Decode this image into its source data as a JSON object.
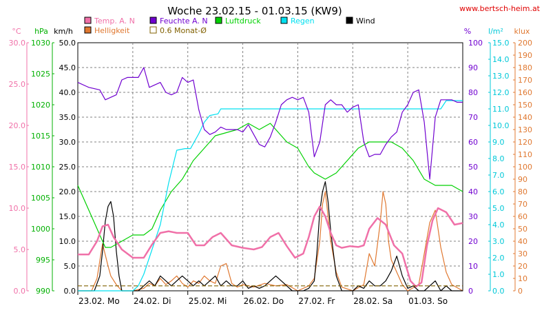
{
  "chart_data": {
    "type": "line",
    "title": "Woche 23.02.15 - 01.03.15 (KW9)",
    "source": "www.bertsch-heim.at",
    "legend": [
      {
        "name": "Temp. A. N",
        "color": "#f070a8",
        "swatch": "box"
      },
      {
        "name": "Feuchte A. N",
        "color": "#7000d0",
        "swatch": "box"
      },
      {
        "name": "Luftdruck",
        "color": "#00d000",
        "swatch": "box"
      },
      {
        "name": "Regen",
        "color": "#00e0f0",
        "swatch": "box"
      },
      {
        "name": "Wind",
        "color": "#000000",
        "swatch": "box"
      },
      {
        "name": "Helligkeit",
        "color": "#e07830",
        "swatch": "box"
      },
      {
        "name": "0.6 Monat-Ø",
        "color": "#806000",
        "swatch": "outline"
      }
    ],
    "x_axis": {
      "range_days": [
        0,
        7
      ],
      "ticks": [
        "23.02. Mo",
        "24.02. Di",
        "25.02. Mi",
        "26.02. Do",
        "27.02. Fr",
        "28.02. Sa",
        "01.03. So"
      ]
    },
    "axes": {
      "temp": {
        "unit": "°C",
        "color": "#f070a8",
        "range": [
          0,
          30
        ],
        "ticks": [
          "0.0",
          "5.0",
          "10.0",
          "15.0",
          "20.0",
          "25.0",
          "30.0"
        ]
      },
      "pressure": {
        "unit": "hPa",
        "color": "#00b000",
        "range": [
          990,
          1030
        ],
        "ticks": [
          "990",
          "995",
          "1000",
          "1005",
          "1010",
          "1015",
          "1020",
          "1025",
          "1030"
        ]
      },
      "wind": {
        "unit": "km/h",
        "color": "#000000",
        "range": [
          0,
          50
        ],
        "ticks": [
          "0.0",
          "5.0",
          "10.0",
          "15.0",
          "20.0",
          "25.0",
          "30.0",
          "35.0",
          "40.0",
          "45.0",
          "50.0"
        ]
      },
      "humidity": {
        "unit": "%",
        "color": "#7000d0",
        "range": [
          0,
          100
        ],
        "ticks": [
          "0",
          "10",
          "20",
          "30",
          "40",
          "50",
          "60",
          "70",
          "80",
          "90",
          "100"
        ]
      },
      "rain": {
        "unit": "l/m²",
        "color": "#00c8d8",
        "range": [
          0,
          15
        ],
        "ticks": [
          "0.0",
          "1.0",
          "2.0",
          "3.0",
          "4.0",
          "5.0",
          "6.0",
          "7.0",
          "8.0",
          "9.0",
          "10.0",
          "11.0",
          "12.0",
          "13.0",
          "14.0",
          "15.0"
        ]
      },
      "lux": {
        "unit": "klux",
        "color": "#e07830",
        "range": [
          0,
          200
        ],
        "ticks": [
          "0",
          "10",
          "20",
          "30",
          "40",
          "50",
          "60",
          "70",
          "80",
          "90",
          "100",
          "110",
          "120",
          "130",
          "140",
          "150",
          "160",
          "170",
          "180",
          "190",
          "200"
        ]
      }
    },
    "series": [
      {
        "name": "Temp. A. N",
        "axis": "temp",
        "color": "#f070a8",
        "x": [
          0,
          0.2,
          0.35,
          0.45,
          0.55,
          0.65,
          0.8,
          1.0,
          1.2,
          1.35,
          1.5,
          1.65,
          1.8,
          2.0,
          2.15,
          2.3,
          2.45,
          2.6,
          2.8,
          3.0,
          3.2,
          3.35,
          3.5,
          3.65,
          3.8,
          3.95,
          4.1,
          4.2,
          4.3,
          4.4,
          4.5,
          4.6,
          4.7,
          4.8,
          4.95,
          5.1,
          5.2,
          5.3,
          5.45,
          5.6,
          5.75,
          5.9,
          6.05,
          6.15,
          6.25,
          6.35,
          6.45,
          6.55,
          6.7,
          6.85,
          7.0
        ],
        "y": [
          4.4,
          4.4,
          6.0,
          7.8,
          8.0,
          6.5,
          5.0,
          4.0,
          4.0,
          5.6,
          7.0,
          7.2,
          7.0,
          7.0,
          5.5,
          5.5,
          6.5,
          7.0,
          5.5,
          5.2,
          5.0,
          5.3,
          6.5,
          7.0,
          5.4,
          4.0,
          4.5,
          6.5,
          9.0,
          10.2,
          9.0,
          7.0,
          5.5,
          5.2,
          5.4,
          5.3,
          5.5,
          7.5,
          8.8,
          8.0,
          5.5,
          4.5,
          1.2,
          0.5,
          1.0,
          5.5,
          8.5,
          10.0,
          9.5,
          8.0,
          8.2
        ]
      },
      {
        "name": "Feuchte A. N",
        "axis": "humidity",
        "color": "#7000d0",
        "x": [
          0,
          0.2,
          0.4,
          0.5,
          0.6,
          0.7,
          0.8,
          0.9,
          1.0,
          1.1,
          1.2,
          1.3,
          1.4,
          1.5,
          1.6,
          1.7,
          1.8,
          1.9,
          2.0,
          2.1,
          2.2,
          2.3,
          2.4,
          2.5,
          2.6,
          2.7,
          2.8,
          2.9,
          3.0,
          3.1,
          3.2,
          3.3,
          3.4,
          3.5,
          3.6,
          3.7,
          3.8,
          3.9,
          4.0,
          4.1,
          4.2,
          4.3,
          4.4,
          4.5,
          4.6,
          4.7,
          4.8,
          4.9,
          5.0,
          5.1,
          5.2,
          5.3,
          5.4,
          5.5,
          5.6,
          5.7,
          5.8,
          5.9,
          6.0,
          6.1,
          6.2,
          6.3,
          6.4,
          6.5,
          6.6,
          6.7,
          6.8,
          6.9,
          7.0
        ],
        "y": [
          84,
          82,
          81,
          77,
          78,
          79,
          85,
          86,
          86,
          86,
          90,
          82,
          83,
          84,
          80,
          79,
          80,
          86,
          84,
          85,
          73,
          65,
          63,
          64,
          66,
          65,
          65,
          65,
          64,
          67,
          63,
          59,
          58,
          62,
          68,
          75,
          77,
          78,
          77,
          78,
          72,
          54,
          60,
          75,
          77,
          75,
          75,
          72,
          74,
          75,
          60,
          54,
          55,
          55,
          59,
          62,
          64,
          72,
          75,
          80,
          81,
          68,
          45,
          70,
          77,
          77,
          77,
          76,
          76
        ]
      },
      {
        "name": "Luftdruck",
        "axis": "pressure",
        "color": "#00d000",
        "x": [
          0,
          0.2,
          0.4,
          0.5,
          0.6,
          0.8,
          1.0,
          1.2,
          1.35,
          1.5,
          1.7,
          1.9,
          2.1,
          2.3,
          2.5,
          2.7,
          2.9,
          3.1,
          3.3,
          3.5,
          3.6,
          3.8,
          4.0,
          4.2,
          4.3,
          4.5,
          4.7,
          4.9,
          5.1,
          5.3,
          5.5,
          5.7,
          5.9,
          6.1,
          6.3,
          6.5,
          6.6,
          6.8,
          7.0
        ],
        "y": [
          1007,
          1003,
          999,
          997,
          997,
          998,
          999,
          999,
          1000,
          1003,
          1006,
          1008,
          1011,
          1013,
          1015,
          1015.5,
          1016,
          1017,
          1016,
          1017,
          1016,
          1014,
          1013,
          1010,
          1009,
          1008,
          1009,
          1011,
          1013,
          1014,
          1014,
          1014,
          1013,
          1011,
          1008,
          1007,
          1007,
          1007,
          1006
        ]
      },
      {
        "name": "Regen",
        "axis": "rain",
        "color": "#00e0f0",
        "x": [
          0,
          1.0,
          1.1,
          1.2,
          1.35,
          1.5,
          1.65,
          1.8,
          1.95,
          2.05,
          2.2,
          2.3,
          2.4,
          2.55,
          2.6,
          2.7,
          3.0,
          4.0,
          5.0,
          6.0,
          6.6,
          6.7,
          6.8,
          7.0
        ],
        "y": [
          0,
          0,
          0.3,
          1.0,
          2.5,
          4.0,
          6.5,
          8.5,
          8.6,
          8.6,
          9.5,
          10.2,
          10.6,
          10.7,
          11.0,
          11.0,
          11.0,
          11.0,
          11.0,
          11.0,
          11.0,
          11.5,
          11.5,
          11.5
        ]
      },
      {
        "name": "Wind",
        "axis": "wind",
        "color": "#000000",
        "x": [
          0,
          0.3,
          0.4,
          0.45,
          0.5,
          0.55,
          0.6,
          0.65,
          0.7,
          0.75,
          0.8,
          1.0,
          1.1,
          1.2,
          1.3,
          1.4,
          1.5,
          1.6,
          1.7,
          1.8,
          1.9,
          2.0,
          2.1,
          2.2,
          2.3,
          2.4,
          2.5,
          2.6,
          2.7,
          2.8,
          2.9,
          3.0,
          3.1,
          3.2,
          3.3,
          3.4,
          3.5,
          3.6,
          3.7,
          3.8,
          3.9,
          4.0,
          4.1,
          4.2,
          4.3,
          4.35,
          4.4,
          4.45,
          4.5,
          4.55,
          4.6,
          4.7,
          4.8,
          4.9,
          5.0,
          5.1,
          5.2,
          5.3,
          5.4,
          5.5,
          5.6,
          5.7,
          5.8,
          5.9,
          6.0,
          6.1,
          6.2,
          6.3,
          6.4,
          6.5,
          6.6,
          6.7,
          6.8,
          6.9,
          7.0
        ],
        "y": [
          0,
          0,
          3,
          8,
          14,
          17,
          18,
          15,
          8,
          3,
          0,
          0,
          0,
          1,
          2,
          1,
          3,
          2,
          1,
          2,
          3,
          2,
          1,
          2,
          1,
          2,
          3,
          1,
          2,
          1,
          1,
          2,
          0.5,
          1,
          0.5,
          1,
          2,
          3,
          2,
          1,
          0,
          0,
          0,
          0.5,
          2,
          8,
          16,
          20,
          22,
          18,
          12,
          3,
          0,
          0,
          0,
          1,
          0.5,
          2,
          1,
          1,
          2,
          4,
          7,
          3,
          0.5,
          1,
          0,
          0,
          1,
          2,
          0,
          1,
          0,
          0,
          0
        ]
      },
      {
        "name": "Helligkeit",
        "axis": "lux",
        "color": "#e07830",
        "x": [
          0,
          0.25,
          0.35,
          0.45,
          0.55,
          0.6,
          0.7,
          0.8,
          1.0,
          1.2,
          1.3,
          1.4,
          1.5,
          1.6,
          1.7,
          1.8,
          1.9,
          2.0,
          2.1,
          2.2,
          2.3,
          2.4,
          2.5,
          2.6,
          2.7,
          2.8,
          2.9,
          3.0,
          3.2,
          3.4,
          3.6,
          3.8,
          4.0,
          4.2,
          4.3,
          4.4,
          4.45,
          4.5,
          4.55,
          4.6,
          4.7,
          4.8,
          5.0,
          5.2,
          5.3,
          5.4,
          5.5,
          5.55,
          5.6,
          5.65,
          5.7,
          5.8,
          5.9,
          6.0,
          6.2,
          6.3,
          6.4,
          6.5,
          6.6,
          6.7,
          6.8,
          7.0
        ],
        "y": [
          0,
          0,
          10,
          38,
          20,
          12,
          5,
          0,
          0,
          2,
          6,
          4,
          10,
          5,
          8,
          12,
          6,
          3,
          8,
          6,
          12,
          8,
          6,
          20,
          22,
          6,
          3,
          5,
          3,
          6,
          4,
          5,
          0,
          4,
          10,
          40,
          70,
          80,
          60,
          40,
          15,
          3,
          0,
          5,
          30,
          20,
          55,
          80,
          70,
          40,
          25,
          15,
          5,
          0,
          5,
          30,
          55,
          65,
          35,
          15,
          5,
          0
        ]
      },
      {
        "name": "0.6 Monat-Ø",
        "axis": "temp",
        "color": "#806000",
        "style": "dashed",
        "x": [
          0,
          7
        ],
        "y": [
          0.6,
          0.6
        ]
      }
    ]
  }
}
